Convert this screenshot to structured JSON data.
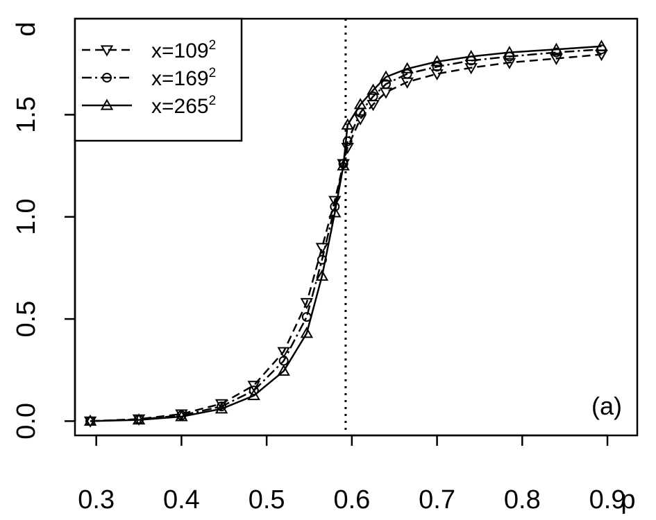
{
  "chart_data": {
    "type": "line",
    "xlabel": "p",
    "ylabel": "d",
    "xlim": [
      0.275,
      0.935
    ],
    "ylim": [
      -0.07,
      1.97
    ],
    "xticks": [
      0.3,
      0.4,
      0.5,
      0.6,
      0.7,
      0.8,
      0.9
    ],
    "xtick_labels": [
      "0.3",
      "0.4",
      "0.5",
      "0.6",
      "0.7",
      "0.8",
      "0.9"
    ],
    "yticks": [
      0.0,
      0.5,
      1.0,
      1.5
    ],
    "ytick_labels": [
      "0.0",
      "0.5",
      "1.0",
      "1.5"
    ],
    "vline": {
      "x": 0.5927,
      "style": "dotted"
    },
    "panel_label": "(a)",
    "grid": false,
    "legend_position": "top-left",
    "series": [
      {
        "name_base": "x=109",
        "name_sup": "2",
        "marker": "triangle-down",
        "linestyle": "dashed",
        "x": [
          0.293,
          0.35,
          0.4,
          0.447,
          0.485,
          0.52,
          0.547,
          0.565,
          0.58,
          0.59,
          0.595,
          0.61,
          0.625,
          0.64,
          0.665,
          0.7,
          0.74,
          0.785,
          0.84,
          0.893
        ],
        "y": [
          0.0,
          0.01,
          0.035,
          0.085,
          0.175,
          0.34,
          0.58,
          0.85,
          1.08,
          1.26,
          1.34,
          1.48,
          1.55,
          1.61,
          1.66,
          1.7,
          1.73,
          1.755,
          1.775,
          1.795
        ]
      },
      {
        "name_base": "x=169",
        "name_sup": "2",
        "marker": "circle",
        "linestyle": "dashdot",
        "x": [
          0.293,
          0.35,
          0.4,
          0.447,
          0.485,
          0.52,
          0.547,
          0.565,
          0.58,
          0.59,
          0.595,
          0.61,
          0.625,
          0.64,
          0.665,
          0.7,
          0.74,
          0.785,
          0.84,
          0.893
        ],
        "y": [
          0.0,
          0.008,
          0.028,
          0.072,
          0.15,
          0.295,
          0.51,
          0.79,
          1.05,
          1.26,
          1.37,
          1.51,
          1.59,
          1.65,
          1.7,
          1.735,
          1.765,
          1.785,
          1.805,
          1.82
        ]
      },
      {
        "name_base": "x=265",
        "name_sup": "2",
        "marker": "triangle-up",
        "linestyle": "solid",
        "x": [
          0.293,
          0.35,
          0.4,
          0.447,
          0.485,
          0.52,
          0.547,
          0.565,
          0.58,
          0.59,
          0.595,
          0.61,
          0.625,
          0.64,
          0.665,
          0.7,
          0.74,
          0.785,
          0.84,
          0.893
        ],
        "y": [
          0.0,
          0.006,
          0.022,
          0.06,
          0.125,
          0.245,
          0.43,
          0.71,
          1.02,
          1.25,
          1.45,
          1.55,
          1.62,
          1.685,
          1.725,
          1.76,
          1.785,
          1.805,
          1.82,
          1.835
        ]
      }
    ]
  }
}
